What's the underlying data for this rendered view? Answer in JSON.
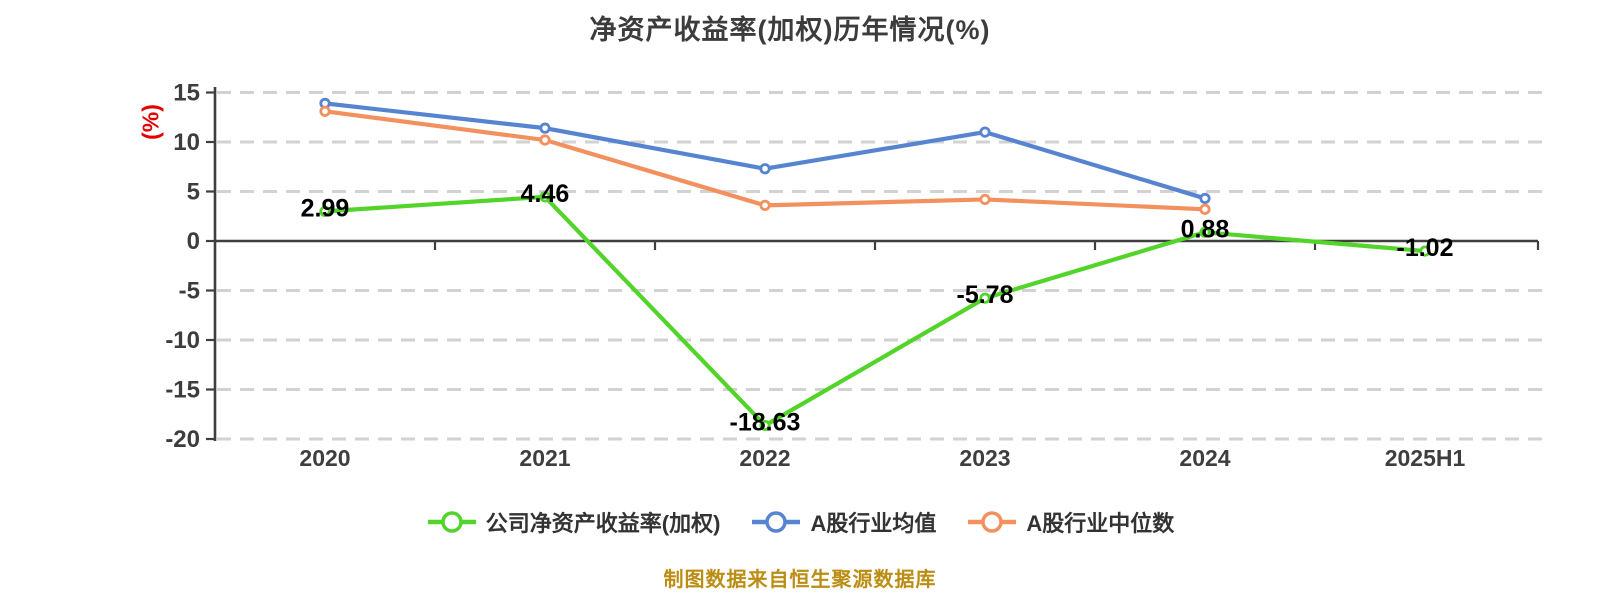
{
  "chart_data": {
    "type": "line",
    "title": "净资产收益率(加权)历年情况(%)",
    "ylabel": "(%)",
    "footer": "制图数据来自恒生聚源数据库",
    "categories": [
      "2020",
      "2021",
      "2022",
      "2023",
      "2024",
      "2025H1"
    ],
    "y_ticks": [
      15,
      10,
      5,
      0,
      -5,
      -10,
      -15,
      -20
    ],
    "y_tick_labels": [
      "15",
      "10",
      "5",
      "0",
      "-5",
      "-10",
      "-15",
      "-20"
    ],
    "ylim": [
      -20,
      15
    ],
    "grid": "horizontal-dashed",
    "legend_position": "bottom",
    "series": [
      {
        "name": "公司净资产收益率(加权)",
        "color": "#52d42a",
        "values": [
          2.99,
          4.46,
          -18.63,
          -5.78,
          0.88,
          -1.02
        ],
        "point_labels": [
          "2.99",
          "4.46",
          "-18.63",
          "-5.78",
          "0.88",
          "-1.02"
        ]
      },
      {
        "name": "A股行业均值",
        "color": "#5784d1",
        "values": [
          13.9,
          11.4,
          7.3,
          11.0,
          4.3,
          null
        ],
        "point_labels": null
      },
      {
        "name": "A股行业中位数",
        "color": "#f2915e",
        "values": [
          13.1,
          10.2,
          3.6,
          4.2,
          3.2,
          null
        ],
        "point_labels": null
      }
    ],
    "colors": {
      "axis": "#3f3f3f",
      "grid": "#d2d2d2",
      "title": "#3c3c3c",
      "ylabel": "#e30000",
      "footer": "#bb8d12",
      "data_label": "#000000",
      "marker_fill": "#ffffff"
    }
  }
}
